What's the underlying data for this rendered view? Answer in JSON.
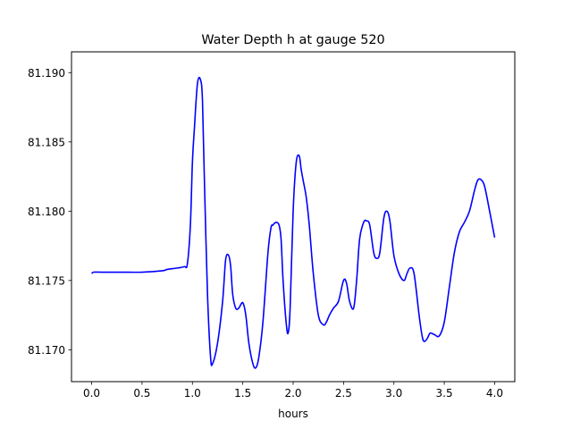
{
  "chart_data": {
    "type": "line",
    "title": "Water Depth h at gauge 520",
    "xlabel": "hours",
    "ylabel": "",
    "xlim": [
      -0.2,
      4.2
    ],
    "ylim": [
      81.1677,
      81.1915
    ],
    "xticks": [
      0.0,
      0.5,
      1.0,
      1.5,
      2.0,
      2.5,
      3.0,
      3.5,
      4.0
    ],
    "xtick_labels": [
      "0.0",
      "0.5",
      "1.0",
      "1.5",
      "2.0",
      "2.5",
      "3.0",
      "3.5",
      "4.0"
    ],
    "yticks": [
      81.17,
      81.175,
      81.18,
      81.185,
      81.19
    ],
    "ytick_labels": [
      "81.170",
      "81.175",
      "81.180",
      "81.185",
      "81.190"
    ],
    "grid": false,
    "legend": "none",
    "series": [
      {
        "color": "#0000ff",
        "x": [
          0.0,
          0.02,
          0.1,
          0.3,
          0.5,
          0.7,
          0.75,
          0.85,
          0.92,
          0.95,
          0.98,
          1.0,
          1.02,
          1.05,
          1.08,
          1.1,
          1.12,
          1.15,
          1.18,
          1.2,
          1.25,
          1.3,
          1.33,
          1.36,
          1.38,
          1.4,
          1.43,
          1.46,
          1.5,
          1.53,
          1.56,
          1.6,
          1.63,
          1.66,
          1.7,
          1.75,
          1.78,
          1.8,
          1.83,
          1.86,
          1.88,
          1.9,
          1.93,
          1.95,
          1.97,
          2.0,
          2.03,
          2.06,
          2.08,
          2.1,
          2.13,
          2.16,
          2.2,
          2.25,
          2.3,
          2.33,
          2.36,
          2.4,
          2.45,
          2.5,
          2.53,
          2.56,
          2.6,
          2.63,
          2.66,
          2.7,
          2.73,
          2.76,
          2.8,
          2.83,
          2.86,
          2.9,
          2.93,
          2.96,
          3.0,
          3.05,
          3.1,
          3.13,
          3.16,
          3.2,
          3.25,
          3.28,
          3.3,
          3.33,
          3.36,
          3.4,
          3.45,
          3.5,
          3.55,
          3.6,
          3.65,
          3.7,
          3.75,
          3.8,
          3.83,
          3.86,
          3.9,
          3.95,
          4.0
        ],
        "y": [
          81.1755,
          81.1756,
          81.1756,
          81.1756,
          81.1756,
          81.1757,
          81.1758,
          81.1759,
          81.176,
          81.1762,
          81.179,
          81.1835,
          81.186,
          81.1892,
          81.1895,
          81.188,
          81.182,
          81.174,
          81.1695,
          81.169,
          81.1705,
          81.1735,
          81.1765,
          81.1768,
          81.176,
          81.174,
          81.173,
          81.173,
          81.1734,
          81.1725,
          81.1705,
          81.169,
          81.1687,
          81.1695,
          81.172,
          81.177,
          81.1788,
          81.179,
          81.1792,
          81.179,
          81.178,
          81.175,
          81.172,
          81.1712,
          81.173,
          81.18,
          81.1835,
          81.184,
          81.183,
          81.1822,
          81.181,
          81.179,
          81.1755,
          81.1725,
          81.1718,
          81.172,
          81.1725,
          81.173,
          81.1735,
          81.175,
          81.1748,
          81.1735,
          81.173,
          81.175,
          81.178,
          81.1792,
          81.1793,
          81.179,
          81.177,
          81.1766,
          81.177,
          81.1795,
          81.18,
          81.1793,
          81.1768,
          81.1755,
          81.175,
          81.1755,
          81.1759,
          81.1755,
          81.1725,
          81.171,
          81.1706,
          81.1708,
          81.1712,
          81.1711,
          81.171,
          81.172,
          81.1745,
          81.177,
          81.1785,
          81.1792,
          81.18,
          81.1815,
          81.1822,
          81.1823,
          81.1818,
          81.18,
          81.1781
        ]
      }
    ]
  }
}
